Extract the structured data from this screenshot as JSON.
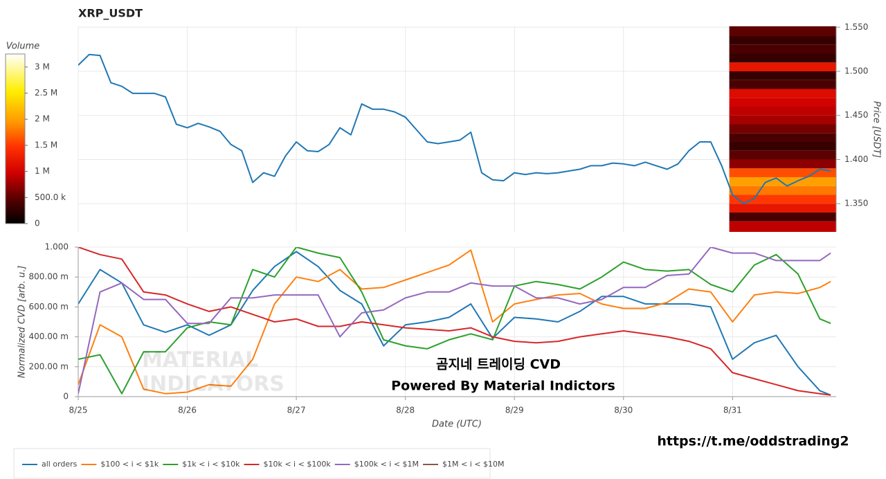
{
  "chart_data": [
    {
      "type": "line",
      "title": "XRP_USDT",
      "y_label": "Price [USDT]",
      "color": "#1f77b4",
      "x": [
        0,
        0.1,
        0.2,
        0.3,
        0.4,
        0.5,
        0.6,
        0.7,
        0.8,
        0.9,
        1,
        1.1,
        1.2,
        1.3,
        1.4,
        1.5,
        1.6,
        1.7,
        1.8,
        1.9,
        2,
        2.1,
        2.2,
        2.3,
        2.4,
        2.5,
        2.6,
        2.7,
        2.8,
        2.9,
        3,
        3.1,
        3.2,
        3.3,
        3.4,
        3.5,
        3.6,
        3.7,
        3.8,
        3.9,
        4,
        4.1,
        4.2,
        4.3,
        4.4,
        4.5,
        4.6,
        4.7,
        4.8,
        4.9,
        5,
        5.1,
        5.2,
        5.3,
        5.4,
        5.5,
        5.6,
        5.7,
        5.8,
        5.9,
        6,
        6.1,
        6.2,
        6.3,
        6.4,
        6.5,
        6.6,
        6.7,
        6.8,
        6.9
      ],
      "values": [
        1.507,
        1.519,
        1.518,
        1.487,
        1.483,
        1.475,
        1.475,
        1.475,
        1.471,
        1.44,
        1.436,
        1.441,
        1.437,
        1.432,
        1.417,
        1.41,
        1.374,
        1.385,
        1.381,
        1.404,
        1.42,
        1.41,
        1.409,
        1.417,
        1.436,
        1.428,
        1.463,
        1.457,
        1.457,
        1.454,
        1.448,
        1.434,
        1.42,
        1.418,
        1.42,
        1.422,
        1.431,
        1.385,
        1.377,
        1.376,
        1.385,
        1.383,
        1.385,
        1.384,
        1.385,
        1.387,
        1.389,
        1.393,
        1.393,
        1.396,
        1.395,
        1.393,
        1.397,
        1.393,
        1.389,
        1.395,
        1.41,
        1.42,
        1.42,
        1.393,
        1.36,
        1.35,
        1.356,
        1.374,
        1.379,
        1.37,
        1.376,
        1.381,
        1.389,
        1.387
      ],
      "xlim": [
        0,
        6.95
      ],
      "ylim": [
        1.318,
        1.551
      ],
      "yticks": [
        {
          "value": 1.35,
          "label": "1.350"
        },
        {
          "value": 1.4,
          "label": "1.400"
        },
        {
          "value": 1.45,
          "label": "1.450"
        },
        {
          "value": 1.5,
          "label": "1.500"
        },
        {
          "value": 1.55,
          "label": "1.550"
        }
      ],
      "grid": true,
      "heatmap": {
        "x_range": [
          5.97,
          6.95
        ],
        "price_edges": [
          1.318,
          1.33,
          1.34,
          1.35,
          1.36,
          1.37,
          1.38,
          1.39,
          1.4,
          1.41,
          1.42,
          1.43,
          1.44,
          1.45,
          1.46,
          1.47,
          1.48,
          1.49,
          1.5,
          1.51,
          1.52,
          1.53,
          1.54,
          1.551
        ],
        "volume": [
          900000,
          400000,
          1200000,
          1500000,
          1800000,
          2000000,
          1600000,
          700000,
          500000,
          300000,
          400000,
          600000,
          800000,
          900000,
          1000000,
          1100000,
          400000,
          300000,
          1200000,
          300000,
          400000,
          300000,
          500000
        ],
        "colorbar": {
          "label": "Volume",
          "lim": [
            0,
            3250000
          ],
          "ticks": [
            0,
            {
              "value": 500000,
              "label": "500.0 k"
            },
            {
              "value": 1000000,
              "label": "1 M"
            },
            {
              "value": 1500000,
              "label": "1.5 M"
            },
            {
              "value": 2000000,
              "label": "2 M"
            },
            {
              "value": 2500000,
              "label": "2.5 M"
            },
            {
              "value": 3000000,
              "label": "3 M"
            }
          ]
        }
      }
    },
    {
      "type": "line",
      "y_label": "Normalized CVD [arb. u.]",
      "x_label": "Date (UTC)",
      "x": [
        0,
        0.2,
        0.4,
        0.6,
        0.8,
        1,
        1.2,
        1.4,
        1.6,
        1.8,
        2,
        2.2,
        2.4,
        2.6,
        2.8,
        3,
        3.2,
        3.4,
        3.6,
        3.8,
        4,
        4.2,
        4.4,
        4.6,
        4.8,
        5,
        5.2,
        5.4,
        5.6,
        5.8,
        6,
        6.2,
        6.4,
        6.6,
        6.8,
        6.9
      ],
      "series": [
        {
          "name": "all orders",
          "color": "#1f77b4",
          "values": [
            0.62,
            0.85,
            0.76,
            0.48,
            0.43,
            0.48,
            0.41,
            0.48,
            0.71,
            0.87,
            0.97,
            0.87,
            0.71,
            0.62,
            0.34,
            0.48,
            0.5,
            0.53,
            0.62,
            0.39,
            0.53,
            0.52,
            0.5,
            0.57,
            0.67,
            0.67,
            0.62,
            0.62,
            0.62,
            0.6,
            0.25,
            0.36,
            0.41,
            0.2,
            0.04,
            0.01
          ]
        },
        {
          "name": "$100 < i < $1k",
          "color": "#ff7f0e",
          "values": [
            0.08,
            0.48,
            0.4,
            0.05,
            0.02,
            0.03,
            0.08,
            0.07,
            0.25,
            0.62,
            0.8,
            0.77,
            0.85,
            0.72,
            0.73,
            0.78,
            0.83,
            0.88,
            0.98,
            0.5,
            0.62,
            0.65,
            0.68,
            0.69,
            0.62,
            0.59,
            0.59,
            0.63,
            0.72,
            0.7,
            0.5,
            0.68,
            0.7,
            0.69,
            0.73,
            0.77
          ]
        },
        {
          "name": "$1k < i < $10k",
          "color": "#2ca02c",
          "values": [
            0.25,
            0.28,
            0.02,
            0.3,
            0.3,
            0.46,
            0.5,
            0.48,
            0.85,
            0.8,
            1.0,
            0.96,
            0.93,
            0.7,
            0.38,
            0.34,
            0.32,
            0.38,
            0.42,
            0.38,
            0.74,
            0.77,
            0.75,
            0.72,
            0.8,
            0.9,
            0.85,
            0.84,
            0.85,
            0.75,
            0.7,
            0.88,
            0.95,
            0.82,
            0.52,
            0.49
          ]
        },
        {
          "name": "$10k < i < $100k",
          "color": "#d62728",
          "values": [
            1.0,
            0.95,
            0.92,
            0.7,
            0.68,
            0.62,
            0.57,
            0.6,
            0.55,
            0.5,
            0.52,
            0.47,
            0.47,
            0.5,
            0.48,
            0.46,
            0.45,
            0.44,
            0.46,
            0.4,
            0.37,
            0.36,
            0.37,
            0.4,
            0.42,
            0.44,
            0.42,
            0.4,
            0.37,
            0.32,
            0.16,
            0.12,
            0.08,
            0.04,
            0.02,
            0.01
          ]
        },
        {
          "name": "$100k < i < $1M",
          "color": "#9467bd",
          "values": [
            0.02,
            0.7,
            0.76,
            0.65,
            0.65,
            0.49,
            0.49,
            0.66,
            0.66,
            0.68,
            0.68,
            0.68,
            0.4,
            0.56,
            0.58,
            0.66,
            0.7,
            0.7,
            0.76,
            0.74,
            0.74,
            0.66,
            0.66,
            0.62,
            0.65,
            0.73,
            0.73,
            0.81,
            0.82,
            1.0,
            0.96,
            0.96,
            0.91,
            0.91,
            0.91,
            0.96
          ]
        },
        {
          "name": "$1M < i < $10M",
          "color": "#8c564b",
          "values": [
            null,
            null,
            null,
            null,
            null,
            null,
            null,
            null,
            null,
            null,
            null,
            null,
            null,
            null,
            null,
            null,
            null,
            null,
            null,
            null,
            null,
            null,
            null,
            null,
            null,
            null,
            null,
            null,
            null,
            null,
            null,
            null,
            null,
            null,
            null,
            null
          ]
        }
      ],
      "xlim": [
        0,
        6.95
      ],
      "ylim": [
        0,
        1
      ],
      "xticks": [
        {
          "value": 0,
          "label": "8/25"
        },
        {
          "value": 1,
          "label": "8/26"
        },
        {
          "value": 2,
          "label": "8/27"
        },
        {
          "value": 3,
          "label": "8/28"
        },
        {
          "value": 4,
          "label": "8/29"
        },
        {
          "value": 5,
          "label": "8/30"
        },
        {
          "value": 6,
          "label": "8/31"
        }
      ],
      "yticks": [
        0,
        {
          "value": 0.2,
          "label": "200.00 m"
        },
        {
          "value": 0.4,
          "label": "400.00 m"
        },
        {
          "value": 0.6,
          "label": "600.00 m"
        },
        {
          "value": 0.8,
          "label": "800.00 m"
        },
        {
          "value": 1,
          "label": "1.000"
        }
      ],
      "grid": true,
      "legend": "bottom-left",
      "annotations": [
        "곰지네 트레이딩 CVD",
        "Powered By Material Indictors"
      ],
      "watermark": [
        "MATERIAL",
        "INDICATORS"
      ],
      "footer": "https://t.me/oddstrading2"
    }
  ]
}
